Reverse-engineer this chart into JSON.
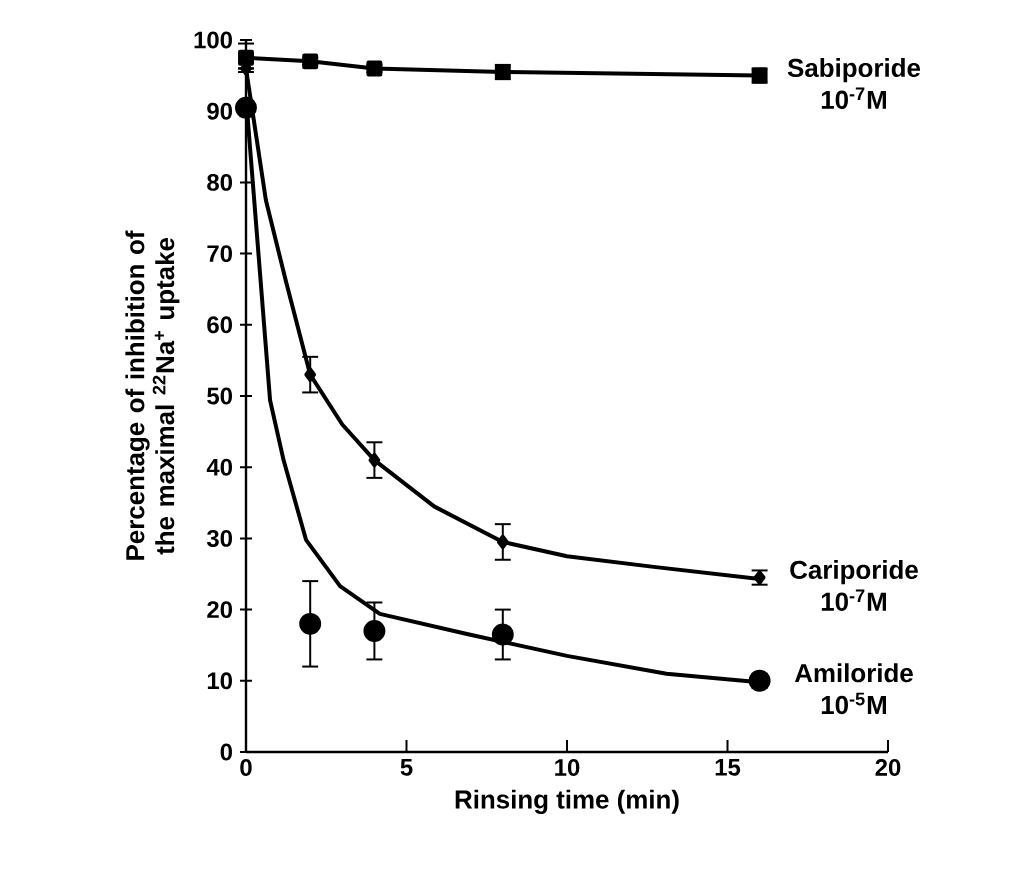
{
  "chart_data": {
    "type": "scatter",
    "xlabel": "Rinsing time (min)",
    "ylabel": "Percentage of inhibition of the maximal $^{22}$Na$^{+}$ uptake",
    "xlim": [
      0,
      20
    ],
    "ylim": [
      0,
      100
    ],
    "xticks": [
      0,
      5,
      10,
      15,
      20
    ],
    "yticks": [
      0,
      10,
      20,
      30,
      40,
      50,
      60,
      70,
      80,
      90,
      100
    ],
    "grid": false,
    "series": [
      {
        "name": "Sabiporide 10$^{-7}$M",
        "type": "line",
        "marker": "square",
        "color": "#000000",
        "x": [
          0,
          2,
          4,
          8,
          16
        ],
        "values": [
          97.5,
          97,
          96,
          95.5,
          95
        ],
        "errors": [
          2,
          0.5,
          0.5,
          1,
          1
        ]
      },
      {
        "name": "Cariporide 10$^{-7}$M",
        "marker": "diamond",
        "color": "#000000",
        "x": [
          0,
          2,
          4,
          8,
          16
        ],
        "values": [
          96,
          53,
          41,
          29.5,
          24.5
        ],
        "errors": [
          null,
          2.5,
          2.5,
          2.5,
          1
        ]
      },
      {
        "name": "Amiloride 10$^{-5}$M",
        "marker": "circle",
        "color": "#000000",
        "x": [
          0,
          2,
          4,
          8,
          16
        ],
        "values": [
          90.5,
          18,
          17,
          16.5,
          10
        ],
        "errors": [
          null,
          6,
          4,
          3.5,
          1
        ]
      },
      {
        "type": "line",
        "marker": "none",
        "color": "#000000",
        "x": [
          0,
          0.62,
          1.25,
          2,
          3,
          4,
          5.86,
          8,
          10,
          12.7,
          16
        ],
        "values": [
          96,
          77.5,
          66,
          53,
          46,
          41,
          34.5,
          29.5,
          27.5,
          26,
          24.3
        ]
      },
      {
        "type": "line",
        "marker": "none",
        "color": "#000000",
        "x": [
          0,
          0.3,
          0.75,
          1.17,
          1.87,
          2.93,
          4.17,
          6.85,
          10,
          13.1,
          16
        ],
        "values": [
          92,
          75,
          49.4,
          41,
          29.8,
          23.3,
          19.4,
          16.6,
          13.5,
          11,
          9.8
        ]
      }
    ]
  }
}
